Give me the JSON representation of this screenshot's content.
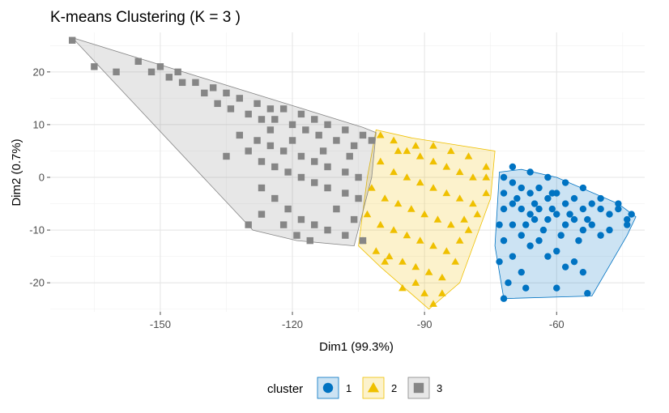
{
  "chart_data": {
    "type": "scatter",
    "title": "K-means Clustering (K = 3 )",
    "xlabel": "Dim1 (99.3%)",
    "ylabel": "Dim2 (0.7%)",
    "xlim": [
      -175,
      -40
    ],
    "ylim": [
      -25.5,
      27.5
    ],
    "xticks": [
      -150,
      -120,
      -90,
      -60
    ],
    "yticks": [
      -20,
      -10,
      0,
      10,
      20
    ],
    "grid": true,
    "legend": {
      "title": "cluster",
      "position": "bottom",
      "entries": [
        "1",
        "2",
        "3"
      ]
    },
    "series": [
      {
        "name": "1",
        "color": "#0073C2",
        "marker": "circle",
        "hull": [
          [
            -73,
            1
          ],
          [
            -68,
            1.5
          ],
          [
            -60,
            0
          ],
          [
            -46,
            -5
          ],
          [
            -42,
            -7.5
          ],
          [
            -44,
            -11
          ],
          [
            -52,
            -22.5
          ],
          [
            -72,
            -23
          ],
          [
            -74,
            -13
          ]
        ],
        "points": [
          [
            -72,
            0
          ],
          [
            -70,
            -1
          ],
          [
            -68,
            -2
          ],
          [
            -66,
            -3
          ],
          [
            -64,
            -2
          ],
          [
            -62,
            -4
          ],
          [
            -60,
            -3
          ],
          [
            -58,
            -5
          ],
          [
            -56,
            -4
          ],
          [
            -54,
            -6
          ],
          [
            -52,
            -5
          ],
          [
            -50,
            -6
          ],
          [
            -48,
            -7
          ],
          [
            -46,
            -6
          ],
          [
            -44,
            -8
          ],
          [
            -72,
            -3
          ],
          [
            -70,
            -5
          ],
          [
            -68,
            -6
          ],
          [
            -66,
            -7
          ],
          [
            -64,
            -6
          ],
          [
            -62,
            -8
          ],
          [
            -60,
            -7
          ],
          [
            -58,
            -9
          ],
          [
            -56,
            -8
          ],
          [
            -54,
            -10
          ],
          [
            -52,
            -9
          ],
          [
            -50,
            -11
          ],
          [
            -48,
            -10
          ],
          [
            -72,
            -6
          ],
          [
            -70,
            -9
          ],
          [
            -68,
            -11
          ],
          [
            -66,
            -13
          ],
          [
            -64,
            -12
          ],
          [
            -62,
            -15
          ],
          [
            -60,
            -14
          ],
          [
            -58,
            -17
          ],
          [
            -56,
            -16
          ],
          [
            -54,
            -18
          ],
          [
            -72,
            -12
          ],
          [
            -70,
            -15
          ],
          [
            -68,
            -18
          ],
          [
            -71,
            -20
          ],
          [
            -72,
            -23
          ],
          [
            -67,
            -21
          ],
          [
            -60,
            -21
          ],
          [
            -53,
            -22
          ],
          [
            -70,
            2
          ],
          [
            -66,
            1
          ],
          [
            -62,
            0
          ],
          [
            -58,
            -1
          ],
          [
            -54,
            -2
          ],
          [
            -50,
            -4
          ],
          [
            -46,
            -5
          ],
          [
            -43,
            -7
          ],
          [
            -44,
            -9
          ],
          [
            -65,
            -5
          ],
          [
            -61,
            -6
          ],
          [
            -57,
            -7
          ],
          [
            -53,
            -8
          ],
          [
            -67,
            -9
          ],
          [
            -63,
            -10
          ],
          [
            -59,
            -11
          ],
          [
            -55,
            -12
          ],
          [
            -69,
            -4
          ],
          [
            -65,
            -8
          ],
          [
            -61,
            -3
          ],
          [
            -73,
            -9
          ],
          [
            -73,
            -16
          ]
        ]
      },
      {
        "name": "2",
        "color": "#EFC000",
        "marker": "triangle",
        "hull": [
          [
            -101,
            9
          ],
          [
            -93,
            7.5
          ],
          [
            -74,
            5
          ],
          [
            -75,
            -4
          ],
          [
            -82,
            -20
          ],
          [
            -89,
            -25
          ],
          [
            -100,
            -17
          ],
          [
            -105,
            -13
          ],
          [
            -103,
            0
          ]
        ],
        "points": [
          [
            -100,
            8
          ],
          [
            -97,
            7
          ],
          [
            -94,
            5
          ],
          [
            -91,
            4
          ],
          [
            -88,
            3
          ],
          [
            -85,
            2
          ],
          [
            -82,
            1
          ],
          [
            -79,
            0
          ],
          [
            -76,
            2
          ],
          [
            -100,
            3
          ],
          [
            -97,
            1
          ],
          [
            -94,
            0
          ],
          [
            -91,
            -1
          ],
          [
            -88,
            -2
          ],
          [
            -85,
            -3
          ],
          [
            -82,
            -4
          ],
          [
            -79,
            -5
          ],
          [
            -76,
            -3
          ],
          [
            -102,
            -2
          ],
          [
            -99,
            -4
          ],
          [
            -96,
            -5
          ],
          [
            -93,
            -6
          ],
          [
            -90,
            -7
          ],
          [
            -87,
            -8
          ],
          [
            -84,
            -9
          ],
          [
            -81,
            -8
          ],
          [
            -103,
            -7
          ],
          [
            -100,
            -9
          ],
          [
            -97,
            -10
          ],
          [
            -94,
            -11
          ],
          [
            -91,
            -12
          ],
          [
            -88,
            -13
          ],
          [
            -85,
            -14
          ],
          [
            -82,
            -12
          ],
          [
            -104,
            -12
          ],
          [
            -101,
            -14
          ],
          [
            -98,
            -15
          ],
          [
            -95,
            -16
          ],
          [
            -92,
            -17
          ],
          [
            -89,
            -18
          ],
          [
            -86,
            -19
          ],
          [
            -90,
            -22
          ],
          [
            -88,
            -24
          ],
          [
            -92,
            -20
          ],
          [
            -95,
            -21
          ],
          [
            -99,
            -16
          ],
          [
            -96,
            5
          ],
          [
            -92,
            6
          ],
          [
            -88,
            6
          ],
          [
            -84,
            5
          ],
          [
            -80,
            4
          ],
          [
            -76,
            0
          ],
          [
            -78,
            -7
          ],
          [
            -80,
            -10
          ],
          [
            -83,
            -16
          ],
          [
            -86,
            -22
          ]
        ]
      },
      {
        "name": "3",
        "color": "#868686",
        "marker": "square",
        "hull": [
          [
            -170,
            26.5
          ],
          [
            -104,
            9.5
          ],
          [
            -101,
            8.5
          ],
          [
            -102,
            0
          ],
          [
            -106,
            -13
          ],
          [
            -119,
            -12
          ],
          [
            -129,
            -10
          ]
        ],
        "points": [
          [
            -170,
            26
          ],
          [
            -165,
            21
          ],
          [
            -160,
            20
          ],
          [
            -155,
            22
          ],
          [
            -152,
            20
          ],
          [
            -148,
            19
          ],
          [
            -145,
            18
          ],
          [
            -142,
            18
          ],
          [
            -138,
            17
          ],
          [
            -135,
            16
          ],
          [
            -132,
            15
          ],
          [
            -128,
            14
          ],
          [
            -125,
            13
          ],
          [
            -122,
            13
          ],
          [
            -118,
            12
          ],
          [
            -115,
            11
          ],
          [
            -112,
            10
          ],
          [
            -108,
            9
          ],
          [
            -104,
            8
          ],
          [
            -150,
            21
          ],
          [
            -146,
            20
          ],
          [
            -140,
            16
          ],
          [
            -137,
            14
          ],
          [
            -134,
            13
          ],
          [
            -130,
            12
          ],
          [
            -127,
            11
          ],
          [
            -124,
            11
          ],
          [
            -120,
            10
          ],
          [
            -117,
            9
          ],
          [
            -114,
            8
          ],
          [
            -110,
            7
          ],
          [
            -106,
            6
          ],
          [
            -102,
            7
          ],
          [
            -132,
            8
          ],
          [
            -128,
            7
          ],
          [
            -125,
            6
          ],
          [
            -122,
            5
          ],
          [
            -118,
            4
          ],
          [
            -115,
            3
          ],
          [
            -112,
            2
          ],
          [
            -108,
            1
          ],
          [
            -105,
            0
          ],
          [
            -130,
            5
          ],
          [
            -127,
            3
          ],
          [
            -124,
            2
          ],
          [
            -121,
            1
          ],
          [
            -118,
            0
          ],
          [
            -115,
            -1
          ],
          [
            -112,
            -2
          ],
          [
            -108,
            -3
          ],
          [
            -105,
            -4
          ],
          [
            -127,
            -2
          ],
          [
            -124,
            -4
          ],
          [
            -121,
            -6
          ],
          [
            -118,
            -8
          ],
          [
            -115,
            -9
          ],
          [
            -112,
            -10
          ],
          [
            -108,
            -11
          ],
          [
            -104,
            -12
          ],
          [
            -122,
            -9
          ],
          [
            -119,
            -11
          ],
          [
            -116,
            -12
          ],
          [
            -130,
            -9
          ],
          [
            -127,
            -7
          ],
          [
            -135,
            4
          ],
          [
            -125,
            9
          ],
          [
            -120,
            7
          ],
          [
            -113,
            5
          ],
          [
            -107,
            4
          ],
          [
            -110,
            -6
          ],
          [
            -106,
            -8
          ]
        ]
      }
    ]
  }
}
